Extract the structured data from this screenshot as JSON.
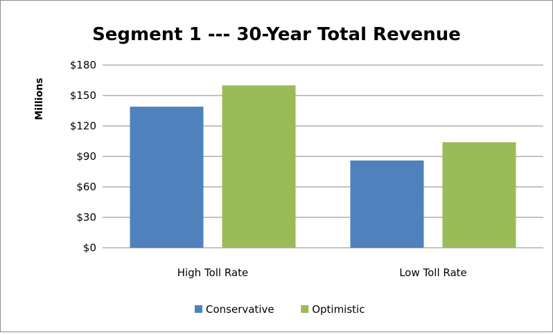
{
  "chart_data": {
    "type": "bar",
    "title": "Segment 1 --- 30-Year Total Revenue",
    "xlabel": "",
    "ylabel": "Millions",
    "categories": [
      "High Toll Rate",
      "Low Toll Rate"
    ],
    "series": [
      {
        "name": "Conservative",
        "values": [
          139,
          86
        ],
        "color": "#4f81bd"
      },
      {
        "name": "Optimistic",
        "values": [
          160,
          104
        ],
        "color": "#9bbb59"
      }
    ],
    "ylim": [
      0,
      180
    ],
    "yticks": [
      0,
      30,
      60,
      90,
      120,
      150,
      180
    ],
    "ytick_labels": [
      "$0",
      "$30",
      "$60",
      "$90",
      "$120",
      "$150",
      "$180"
    ],
    "grid": true,
    "legend_position": "bottom",
    "gridline_color": "#868686"
  }
}
